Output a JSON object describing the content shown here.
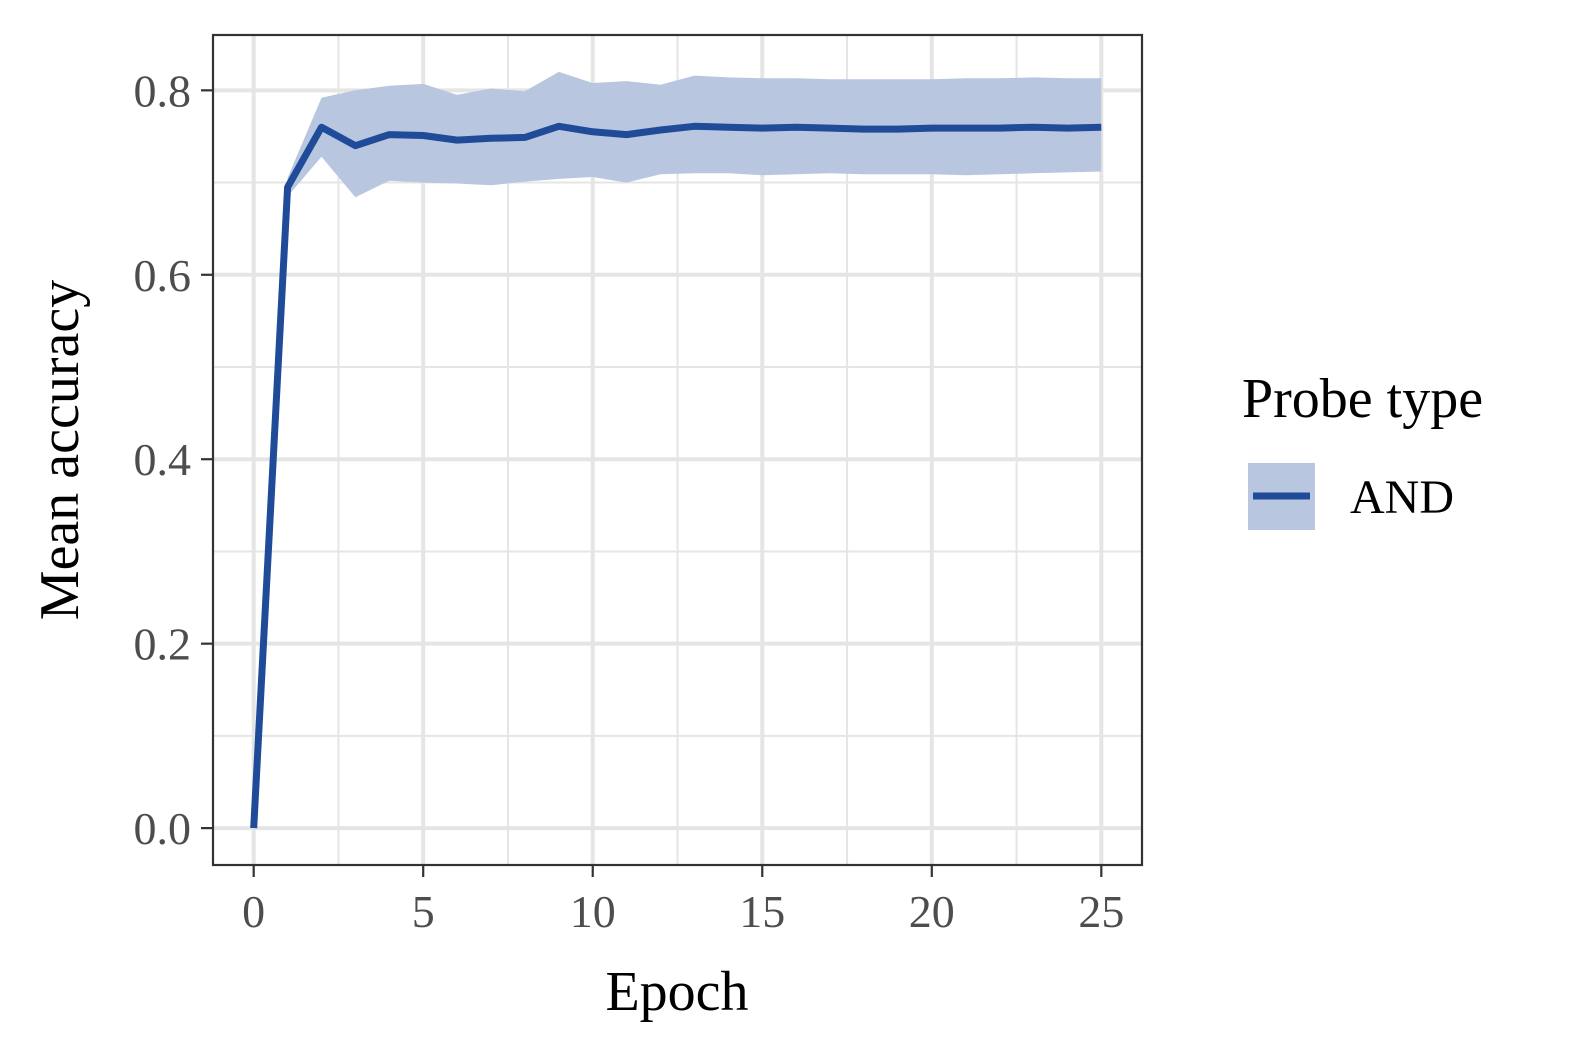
{
  "chart_data": {
    "type": "line",
    "title": "",
    "xlabel": "Epoch",
    "ylabel": "Mean accuracy",
    "xlim": [
      -1.2,
      26.2
    ],
    "ylim": [
      -0.04,
      0.86
    ],
    "x_ticks": [
      0,
      5,
      10,
      15,
      20,
      25
    ],
    "x_tick_labels": [
      "0",
      "5",
      "10",
      "15",
      "20",
      "25"
    ],
    "y_ticks": [
      0.0,
      0.2,
      0.4,
      0.6,
      0.8
    ],
    "y_tick_labels": [
      "0.0",
      "0.2",
      "0.4",
      "0.6",
      "0.8"
    ],
    "grid": true,
    "legend_title": "Probe type",
    "legend_position": "right",
    "colors": {
      "line": "#1f4b99",
      "ribbon": "#b8c6e0",
      "grid": "#e5e5e5",
      "panel_border": "#333333",
      "tick_label": "#4d4d4d"
    },
    "series": [
      {
        "name": "AND",
        "x": [
          0,
          1,
          2,
          3,
          4,
          5,
          6,
          7,
          8,
          9,
          10,
          11,
          12,
          13,
          14,
          15,
          16,
          17,
          18,
          19,
          20,
          21,
          22,
          23,
          24,
          25
        ],
        "y": [
          0.0,
          0.695,
          0.76,
          0.74,
          0.752,
          0.751,
          0.746,
          0.748,
          0.749,
          0.761,
          0.755,
          0.752,
          0.757,
          0.761,
          0.76,
          0.759,
          0.76,
          0.759,
          0.758,
          0.758,
          0.759,
          0.759,
          0.759,
          0.76,
          0.759,
          0.76
        ],
        "lower": [
          0.0,
          0.685,
          0.728,
          0.684,
          0.702,
          0.7,
          0.699,
          0.697,
          0.701,
          0.704,
          0.706,
          0.7,
          0.709,
          0.71,
          0.71,
          0.708,
          0.709,
          0.71,
          0.709,
          0.709,
          0.709,
          0.708,
          0.709,
          0.71,
          0.711,
          0.712
        ],
        "upper": [
          0.0,
          0.705,
          0.792,
          0.8,
          0.805,
          0.807,
          0.795,
          0.802,
          0.799,
          0.82,
          0.808,
          0.81,
          0.806,
          0.816,
          0.814,
          0.813,
          0.813,
          0.812,
          0.812,
          0.812,
          0.812,
          0.813,
          0.813,
          0.814,
          0.813,
          0.813
        ]
      }
    ]
  }
}
